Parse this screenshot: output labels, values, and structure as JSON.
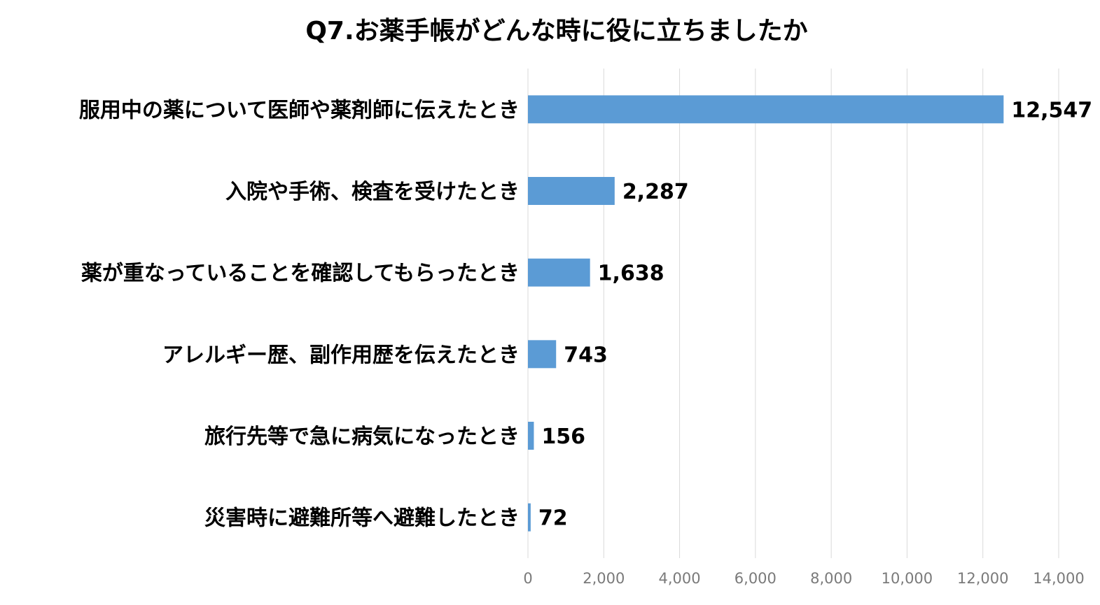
{
  "chart_data": {
    "type": "bar",
    "orientation": "horizontal",
    "title": "Q7.お薬手帳がどんな時に役に立ちましたか",
    "categories": [
      "服用中の薬について医師や薬剤師に伝えたとき",
      "入院や手術、検査を受けたとき",
      "薬が重なっていることを確認してもらったとき",
      "アレルギー歴、副作用歴を伝えたとき",
      "旅行先等で急に病気になったとき",
      "災害時に避難所等へ避難したとき"
    ],
    "values": [
      12547,
      2287,
      1638,
      743,
      156,
      72
    ],
    "data_labels": [
      "12,547",
      "2,287",
      "1,638",
      "743",
      "156",
      "72"
    ],
    "xlim": [
      0,
      14000
    ],
    "xticks": [
      0,
      2000,
      4000,
      6000,
      8000,
      10000,
      12000,
      14000
    ],
    "xtick_labels": [
      "0",
      "2,000",
      "4,000",
      "6,000",
      "8,000",
      "10,000",
      "12,000",
      "14,000"
    ],
    "grid": true,
    "legend": "none",
    "bar_color": "#5b9bd5"
  }
}
